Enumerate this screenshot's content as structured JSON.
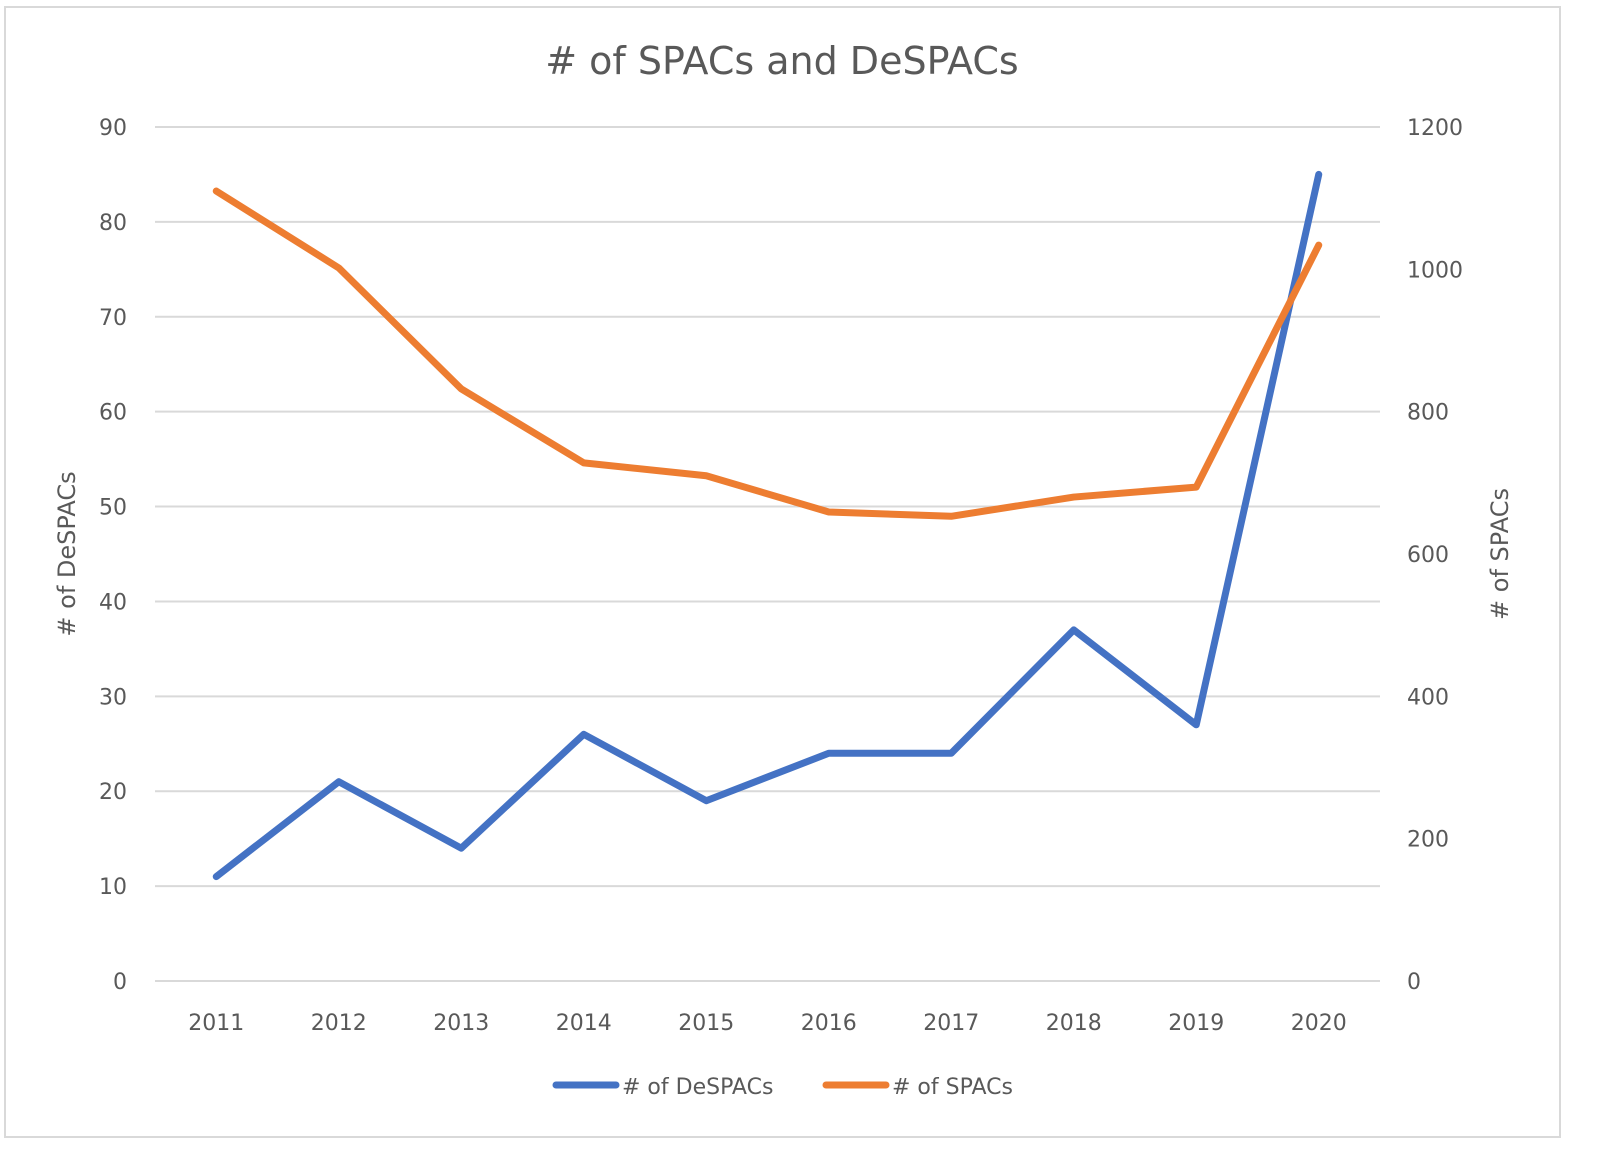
{
  "chart_data": {
    "type": "line",
    "title": "# of SPACs and DeSPACs",
    "xlabel": "",
    "ylabel": "# of DeSPACs",
    "y2label": "# of SPACs",
    "categories": [
      "2011",
      "2012",
      "2013",
      "2014",
      "2015",
      "2016",
      "2017",
      "2018",
      "2019",
      "2020"
    ],
    "series": [
      {
        "name": "# of DeSPACs",
        "axis": "left",
        "color": "#4472C4",
        "values": [
          11,
          21,
          14,
          26,
          19,
          24,
          24,
          37,
          27,
          85
        ]
      },
      {
        "name": "# of SPACs",
        "axis": "right",
        "color": "#ED7D31",
        "values": [
          1110,
          1002,
          832,
          728,
          710,
          659,
          653,
          680,
          694,
          1034
        ]
      }
    ],
    "ylim": [
      0,
      90
    ],
    "y2lim": [
      0,
      1200
    ],
    "yticks": [
      "0",
      "10",
      "20",
      "30",
      "40",
      "50",
      "60",
      "70",
      "80",
      "90"
    ],
    "y2ticks": [
      "0",
      "200",
      "400",
      "600",
      "800",
      "1000",
      "1200"
    ],
    "grid": true,
    "legend": "bottom-center"
  }
}
